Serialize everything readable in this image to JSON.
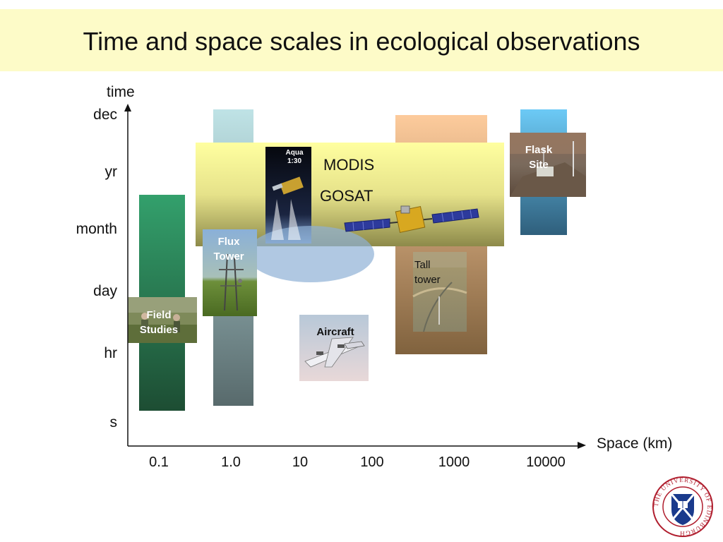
{
  "title": "Time and space scales in ecological observations",
  "axes": {
    "y_label": "time",
    "x_label": "Space (km)",
    "y_ticks": [
      "dec",
      "yr",
      "month",
      "day",
      "hr",
      "s"
    ],
    "x_ticks": [
      "0.1",
      "1.0",
      "10",
      "100",
      "1000",
      "10000"
    ]
  },
  "observations": {
    "field": "Field\nStudies",
    "flux": "Flux\nTower",
    "aircraft": "Aircraft",
    "tall": "Tall\ntower",
    "flask": "Flask\nSite",
    "modis": "MODIS",
    "gosat": "GOSAT",
    "aqua": "Aqua\n1:30"
  },
  "logo": {
    "text": "THE UNIVERSITY OF EDINBURGH"
  },
  "colors": {
    "header_bg": "#fdfbc8",
    "field_bar": "#2e9a66",
    "flux_bar": "#b8dde0",
    "tall_bar": "#f8c89c",
    "flask_bar": "#6cc8f4"
  }
}
